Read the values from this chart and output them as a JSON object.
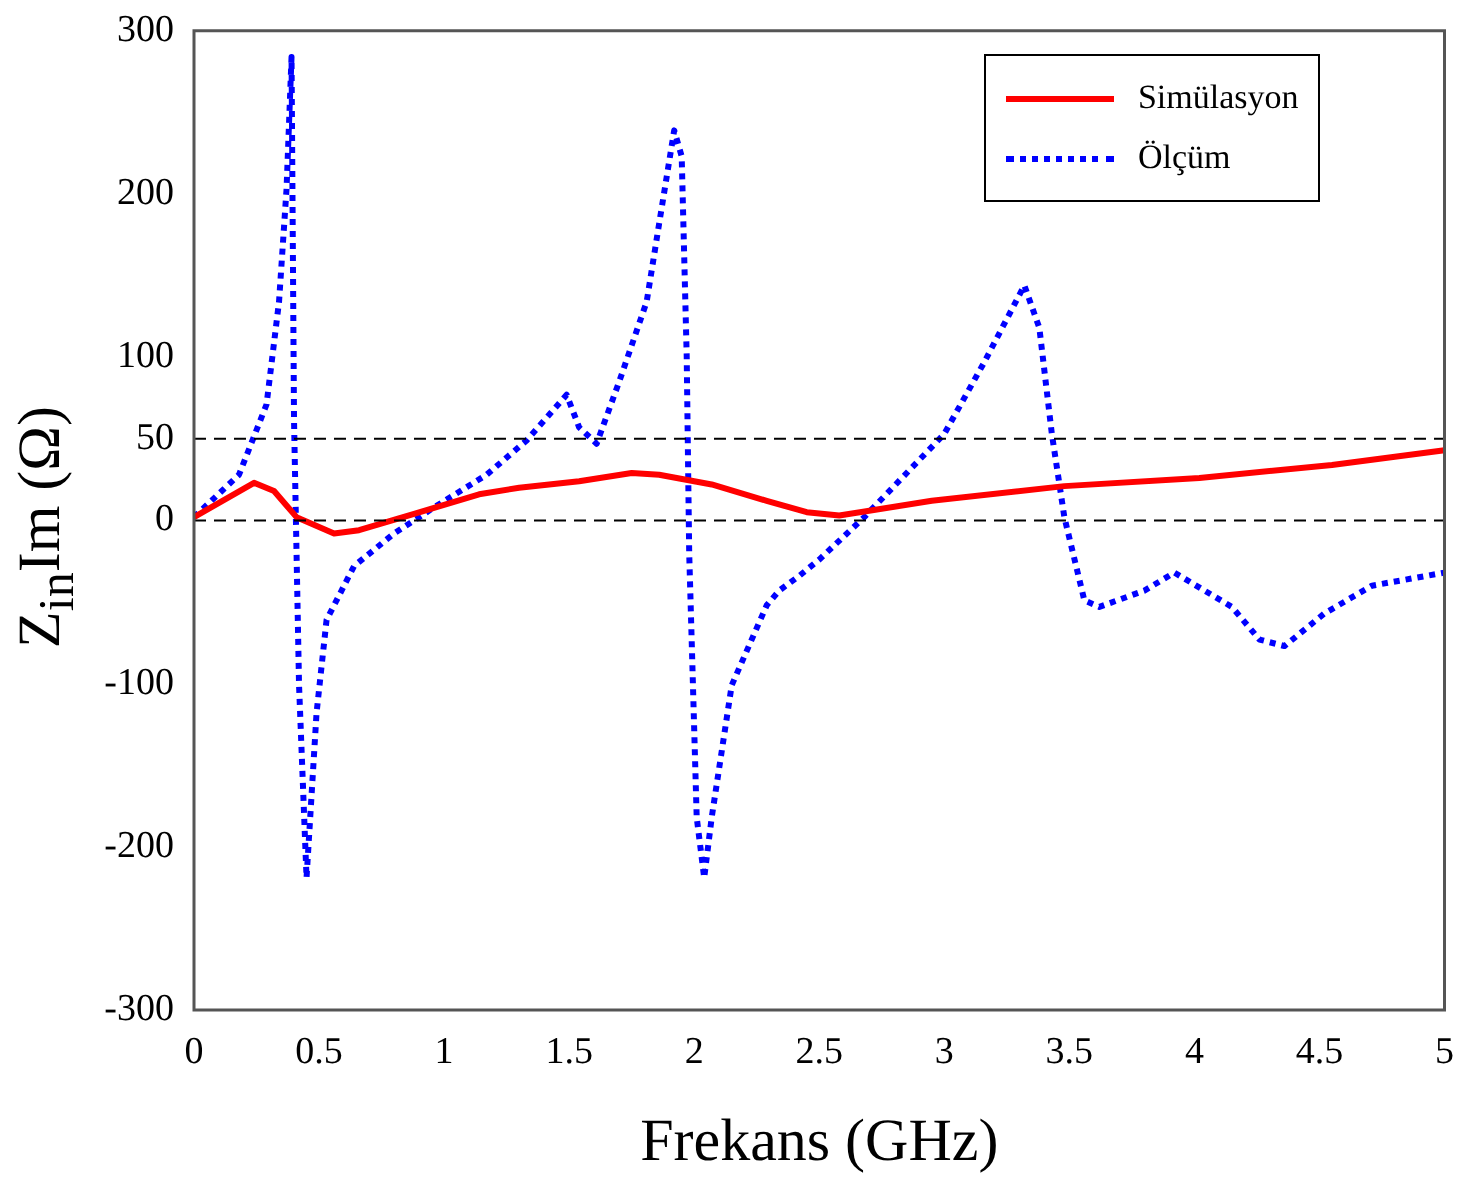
{
  "chart_data": {
    "type": "line",
    "xlabel": "Frekans (GHz)",
    "ylabel": "Z$_{in}$Im (Ω)",
    "xlim": [
      0,
      5
    ],
    "xticks": [
      0,
      0.5,
      1,
      1.5,
      2,
      2.5,
      3,
      3.5,
      4,
      4.5,
      5
    ],
    "ylim": [
      -300,
      300
    ],
    "yticks": [
      -300,
      -200,
      -100,
      0,
      50,
      100,
      200,
      300
    ],
    "grid": false,
    "legend": "top right",
    "marker": "none",
    "ref_lines": [
      {
        "axis": "y",
        "value": 0,
        "color": "#000000",
        "line_style": "dashed"
      },
      {
        "axis": "y",
        "value": 50,
        "color": "#000000",
        "line_style": "dashed"
      }
    ],
    "series": [
      {
        "name": "Simülasyon",
        "color": "#ff0000",
        "line_style": "solid",
        "x": [
          0,
          0.24,
          0.32,
          0.41,
          0.56,
          0.66,
          0.88,
          1.14,
          1.3,
          1.54,
          1.75,
          1.86,
          2.07,
          2.29,
          2.45,
          2.58,
          2.95,
          3.48,
          4.02,
          4.55,
          5
        ],
        "values": [
          2,
          23,
          18,
          2,
          -8,
          -6,
          4,
          16,
          20,
          24,
          29,
          28,
          22,
          12,
          5,
          3,
          12,
          21,
          26,
          34,
          43
        ]
      },
      {
        "name": "Ölçüm",
        "color": "#0000ff",
        "line_style": "dotted",
        "x": [
          0,
          0.18,
          0.29,
          0.34,
          0.37,
          0.39,
          0.4,
          0.42,
          0.45,
          0.49,
          0.53,
          0.64,
          0.8,
          0.96,
          1.17,
          1.33,
          1.49,
          1.54,
          1.61,
          1.7,
          1.81,
          1.86,
          1.92,
          1.95,
          1.97,
          1.98,
          2.01,
          2.04,
          2.07,
          2.15,
          2.29,
          2.34,
          2.42,
          2.5,
          2.68,
          3,
          3.16,
          3.32,
          3.38,
          3.43,
          3.48,
          3.56,
          3.62,
          3.8,
          3.92,
          4.15,
          4.26,
          4.36,
          4.52,
          4.71,
          5
        ],
        "values": [
          2,
          28,
          71,
          134,
          203,
          284,
          61,
          -101,
          -219,
          -118,
          -61,
          -28,
          -8,
          8,
          28,
          49,
          77,
          57,
          47,
          85,
          134,
          182,
          239,
          223,
          101,
          -20,
          -182,
          -219,
          -182,
          -101,
          -52,
          -43,
          -34,
          -24,
          2,
          53,
          97,
          144,
          118,
          53,
          2,
          -49,
          -53,
          -43,
          -32,
          -53,
          -73,
          -77,
          -57,
          -40,
          -32
        ]
      }
    ]
  }
}
